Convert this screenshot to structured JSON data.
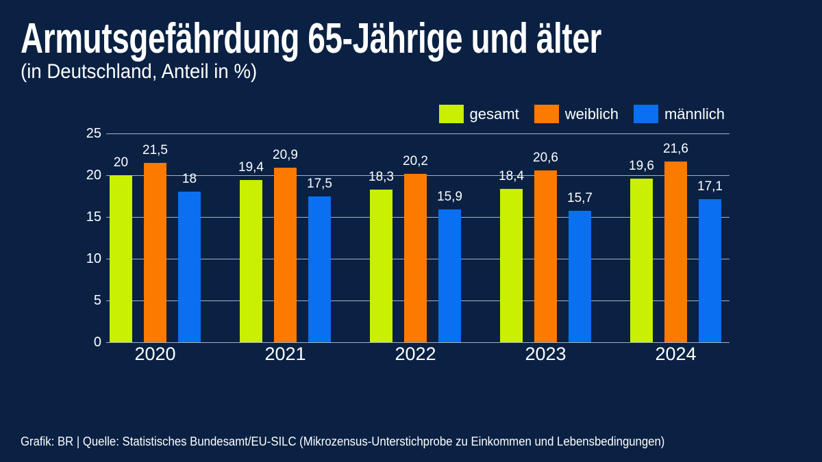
{
  "header": {
    "title": "Armutsgefährdung 65-Jährige und älter",
    "subtitle": "(in Deutschland, Anteil in %)"
  },
  "chart_data": {
    "type": "bar",
    "title": "Armutsgefährdung 65-Jährige und älter",
    "subtitle": "(in Deutschland, Anteil in %)",
    "categories": [
      "2020",
      "2021",
      "2022",
      "2023",
      "2024"
    ],
    "series": [
      {
        "name": "gesamt",
        "color": "#c8f000",
        "values": [
          20,
          19.4,
          18.3,
          18.4,
          19.6
        ]
      },
      {
        "name": "weiblich",
        "color": "#fc7a00",
        "values": [
          21.5,
          20.9,
          20.2,
          20.6,
          21.6
        ]
      },
      {
        "name": "männlich",
        "color": "#0a6ff0",
        "values": [
          18,
          17.5,
          15.9,
          15.7,
          17.1
        ]
      }
    ],
    "yticks": [
      0,
      5,
      10,
      15,
      20,
      25
    ],
    "ylim": [
      0,
      25
    ],
    "decimal_separator": ",",
    "legend_position": "top-right",
    "grid": "horizontal",
    "xlabel": "",
    "ylabel": ""
  },
  "footer": {
    "credit": "Grafik: BR | Quelle: Statistisches Bundesamt/EU-SILC (Mikrozensus-Unterstichprobe zu Einkommen und Lebensbedingungen)"
  },
  "colors": {
    "background": "#0a2143",
    "text": "#ffffff",
    "gridline": "#c2cbda",
    "bar_gesamt": "#c8f000",
    "bar_weiblich": "#fc7a00",
    "bar_maennlich": "#0a6ff0"
  }
}
